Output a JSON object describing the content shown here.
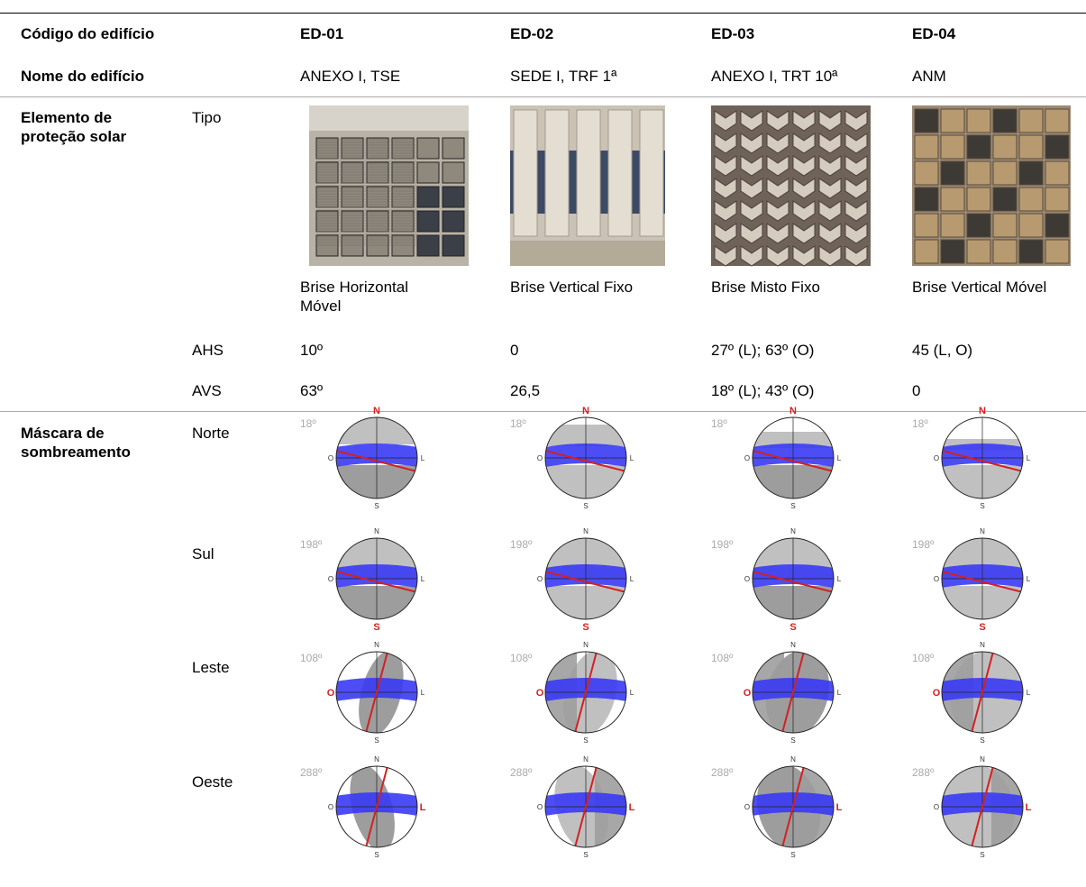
{
  "header": {
    "label": "Código do edifício",
    "codes": [
      "ED-01",
      "ED-02",
      "ED-03",
      "ED-04"
    ]
  },
  "names": {
    "label": "Nome do edifício",
    "values": [
      "ANEXO I, TSE",
      "SEDE I, TRF 1ª",
      "ANEXO I, TRT 10ª",
      "ANM"
    ]
  },
  "protection": {
    "label": "Elemento de proteção solar",
    "type_label": "Tipo",
    "types": [
      "Brise Horizontal Móvel",
      "Brise Vertical Fixo",
      "Brise Misto Fixo",
      "Brise Vertical Móvel"
    ],
    "ahs": {
      "label": "AHS",
      "values": [
        "10º",
        "0",
        "27º (L); 63º (O)",
        "45 (L, O)"
      ]
    },
    "avs": {
      "label": "AVS",
      "values": [
        "63º",
        "26,5",
        "18º (L); 43º (O)",
        "0"
      ]
    }
  },
  "mask": {
    "label": "Máscara de sombreamento",
    "compass": [
      "N",
      "S",
      "O",
      "L"
    ],
    "rows": [
      {
        "orientation": "Norte",
        "angle": "18º"
      },
      {
        "orientation": "Sul",
        "angle": "198º"
      },
      {
        "orientation": "Leste",
        "angle": "108º"
      },
      {
        "orientation": "Oeste",
        "angle": "288º"
      }
    ]
  }
}
